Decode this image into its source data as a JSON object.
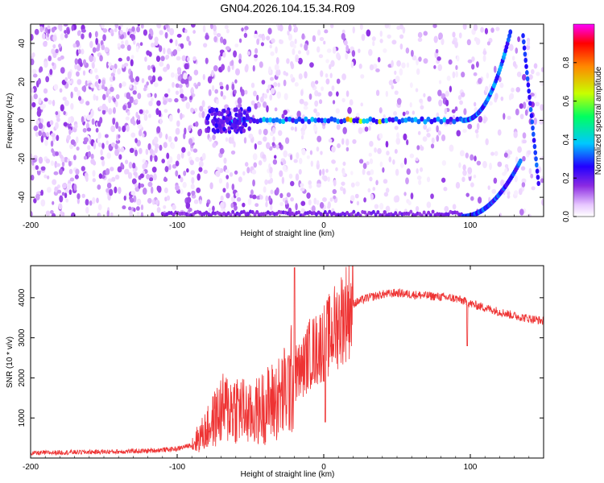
{
  "title": "GN04.2026.104.15.34.R09",
  "chart_data": [
    {
      "type": "heatmap",
      "name": "spectrogram",
      "xlabel": "Height of straight line (km)",
      "ylabel": "Frequency (Hz)",
      "xlim": [
        -200,
        150
      ],
      "ylim": [
        -50,
        50
      ],
      "x_ticks": [
        -200,
        -100,
        0,
        100
      ],
      "y_ticks": [
        -40,
        -20,
        0,
        20,
        40
      ],
      "colorbar": {
        "label": "Normalized spectral amplitude",
        "range": [
          0,
          1
        ],
        "ticks": [
          0.0,
          0.2,
          0.4,
          0.6,
          0.8
        ],
        "tick_labels": [
          "0.0",
          "0.2",
          "0.4",
          "0.6",
          "0.8"
        ],
        "colormap": [
          "#ffffff",
          "#e8c8ff",
          "#8b2be2",
          "#2200ff",
          "#00c8ff",
          "#00ff60",
          "#c8ff00",
          "#ff8800",
          "#ff0000",
          "#ff00ff"
        ]
      },
      "features": [
        {
          "name": "carrier line",
          "from_x": -65,
          "to_x": 95,
          "frequency": 0,
          "amplitude": 0.45
        },
        {
          "name": "upper doppler arc",
          "from_x": 95,
          "to_x": 128,
          "frequency_start": 0,
          "frequency_end": 48
        },
        {
          "name": "lower doppler arc",
          "from_x": 95,
          "to_x": 148,
          "frequency_start": -50,
          "frequency_end": -20
        },
        {
          "name": "right edge arc",
          "from_x": 135,
          "to_x": 148,
          "frequency_start": 40,
          "frequency_end": -30
        },
        {
          "name": "bottom band",
          "from_x": -110,
          "to_x": 95,
          "frequency": -49
        }
      ]
    },
    {
      "type": "line",
      "name": "snr",
      "xlabel": "Height of straight line (km)",
      "ylabel": "SNR (10 * v/v)",
      "xlim": [
        -200,
        150
      ],
      "ylim": [
        0,
        4800
      ],
      "x_ticks": [
        -200,
        -100,
        0,
        100
      ],
      "y_ticks": [
        1000,
        2000,
        3000,
        4000
      ],
      "color": "#ee3333",
      "series": [
        {
          "name": "SNR",
          "x": [
            -200,
            -180,
            -160,
            -140,
            -120,
            -100,
            -90,
            -80,
            -70,
            -60,
            -50,
            -40,
            -30,
            -25,
            -20,
            -15,
            -10,
            -5,
            0,
            5,
            10,
            15,
            20,
            30,
            40,
            50,
            60,
            70,
            80,
            90,
            97,
            100,
            110,
            120,
            130,
            140,
            150
          ],
          "values": [
            120,
            140,
            150,
            160,
            180,
            230,
            330,
            700,
            1200,
            1300,
            1050,
            1300,
            1500,
            1700,
            2100,
            2200,
            2600,
            2700,
            2900,
            3100,
            3400,
            3650,
            3850,
            4000,
            4080,
            4120,
            4080,
            4050,
            4020,
            3980,
            3900,
            3850,
            3750,
            3650,
            3550,
            3480,
            3420
          ]
        }
      ],
      "annotations": [
        {
          "x": -20,
          "value": 4750,
          "label": "spike"
        },
        {
          "x": 98,
          "value": 2800,
          "label": "dip"
        }
      ]
    }
  ]
}
